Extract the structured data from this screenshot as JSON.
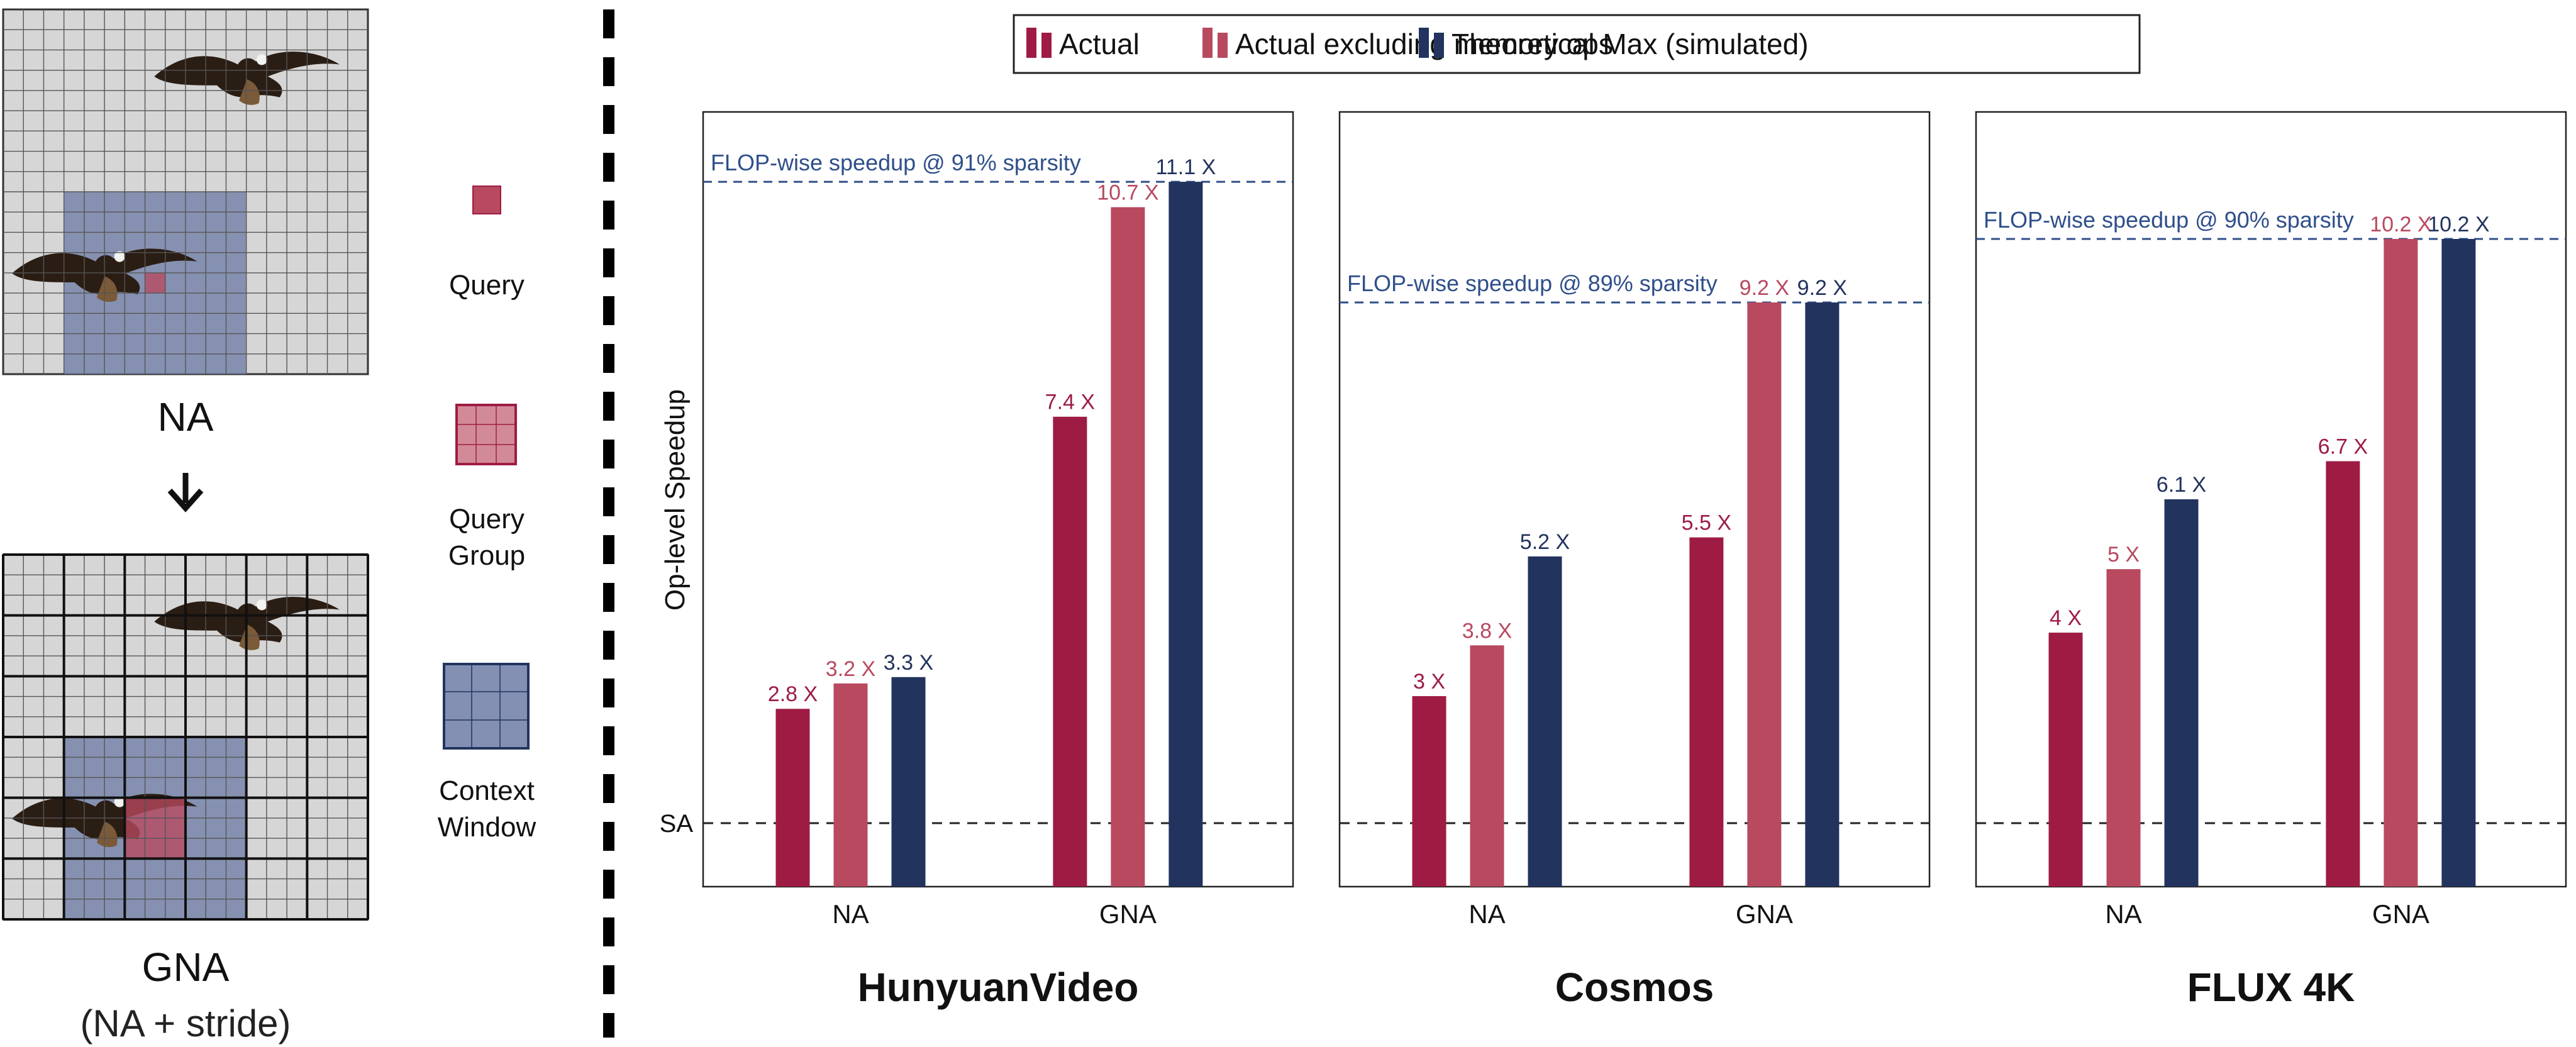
{
  "colors": {
    "actual": "#9e1c44",
    "actual_excl": "#b8495f",
    "theoretical": "#22335e",
    "flop_line": "#2f4f8a",
    "grid_cell": "#d6d6d6",
    "context_window": "#6f7ea7",
    "query": "#b8495f"
  },
  "legend": {
    "items": [
      {
        "key": "actual",
        "label": "Actual"
      },
      {
        "key": "actual_excl",
        "label": "Actual excluding memory ops"
      },
      {
        "key": "theoretical",
        "label": "Theoretical Max (simulated)"
      }
    ]
  },
  "left_panel": {
    "na_label": "NA",
    "arrow": "down-arrow-icon",
    "gna_label": "GNA",
    "gna_sublabel": "(NA + stride)",
    "query_label": "Query",
    "query_group_label_1": "Query",
    "query_group_label_2": "Group",
    "context_window_label_1": "Context",
    "context_window_label_2": "Window"
  },
  "chart_data": [
    {
      "type": "bar",
      "title": "HunyuanVideo",
      "ylabel": "Op-level Speedup",
      "baseline_label": "SA",
      "baseline_value": 1,
      "ylim": [
        0,
        12.2
      ],
      "categories": [
        "NA",
        "GNA"
      ],
      "series": [
        {
          "name": "Actual",
          "key": "actual",
          "values": [
            2.8,
            7.4
          ],
          "labels": [
            "2.8 X",
            "7.4 X"
          ]
        },
        {
          "name": "Actual excluding memory ops",
          "key": "actual_excl",
          "values": [
            3.2,
            10.7
          ],
          "labels": [
            "3.2 X",
            "10.7 X"
          ]
        },
        {
          "name": "Theoretical Max (simulated)",
          "key": "theoretical",
          "values": [
            3.3,
            11.1
          ],
          "labels": [
            "3.3 X",
            "11.1 X"
          ]
        }
      ],
      "flop_line": {
        "value": 11.1,
        "label": "FLOP-wise speedup @ 91% sparsity"
      }
    },
    {
      "type": "bar",
      "title": "Cosmos",
      "ylim": [
        0,
        12.2
      ],
      "baseline_value": 1,
      "categories": [
        "NA",
        "GNA"
      ],
      "series": [
        {
          "name": "Actual",
          "key": "actual",
          "values": [
            3,
            5.5
          ],
          "labels": [
            "3 X",
            "5.5 X"
          ]
        },
        {
          "name": "Actual excluding memory ops",
          "key": "actual_excl",
          "values": [
            3.8,
            9.2
          ],
          "labels": [
            "3.8 X",
            "9.2 X"
          ]
        },
        {
          "name": "Theoretical Max (simulated)",
          "key": "theoretical",
          "values": [
            5.2,
            9.2
          ],
          "labels": [
            "5.2 X",
            "9.2 X"
          ]
        }
      ],
      "flop_line": {
        "value": 9.2,
        "label": "FLOP-wise speedup @ 89% sparsity"
      }
    },
    {
      "type": "bar",
      "title": "FLUX 4K",
      "ylim": [
        0,
        12.2
      ],
      "baseline_value": 1,
      "categories": [
        "NA",
        "GNA"
      ],
      "series": [
        {
          "name": "Actual",
          "key": "actual",
          "values": [
            4,
            6.7
          ],
          "labels": [
            "4 X",
            "6.7 X"
          ]
        },
        {
          "name": "Actual excluding memory ops",
          "key": "actual_excl",
          "values": [
            5,
            10.2
          ],
          "labels": [
            "5 X",
            "10.2 X"
          ]
        },
        {
          "name": "Theoretical Max (simulated)",
          "key": "theoretical",
          "values": [
            6.1,
            10.2
          ],
          "labels": [
            "6.1 X",
            "10.2 X"
          ]
        }
      ],
      "flop_line": {
        "value": 10.2,
        "label": "FLOP-wise speedup @ 90% sparsity"
      }
    }
  ]
}
